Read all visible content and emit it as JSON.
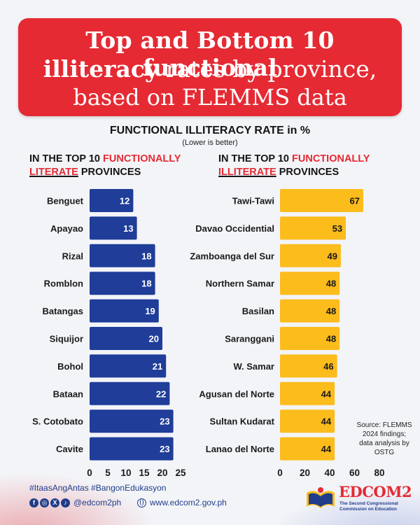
{
  "header": {
    "line1": "Top and Bottom 10 functional",
    "line2_bold": "illiteracy",
    "line2_rest": " rates by province,",
    "line3": "based on FLEMMS data"
  },
  "chart_title": "FUNCTIONAL ILLITERACY RATE in %",
  "chart_subtitle": "(Lower is better)",
  "left_panel": {
    "prefix": "IN THE TOP 10 ",
    "highlight_line1": "FUNCTIONALLY",
    "highlight_line2": "LITERATE",
    "suffix": " PROVINCES"
  },
  "right_panel": {
    "prefix": "IN THE TOP 10 ",
    "highlight_line1": "FUNCTIONALLY",
    "highlight_line2": "ILLITERATE",
    "suffix": " PROVINCES"
  },
  "chart_data": [
    {
      "type": "bar",
      "orientation": "horizontal",
      "categories": [
        "Benguet",
        "Apayao",
        "Rizal",
        "Romblon",
        "Batangas",
        "Siquijor",
        "Bohol",
        "Bataan",
        "S. Cotobato",
        "Cavite"
      ],
      "values": [
        12,
        13,
        18,
        18,
        19,
        20,
        21,
        22,
        23,
        23
      ],
      "xlim": [
        0,
        25
      ],
      "xticks": [
        0,
        5,
        10,
        15,
        20,
        25
      ],
      "color": "#1f3d99",
      "label_color": "#ffffff"
    },
    {
      "type": "bar",
      "orientation": "horizontal",
      "categories": [
        "Tawi-Tawi",
        "Davao Occidential",
        "Zamboanga del Sur",
        "Northern Samar",
        "Basilan",
        "Saranggani",
        "W. Samar",
        "Agusan del Norte",
        "Sultan Kudarat",
        "Lanao del Norte"
      ],
      "values": [
        67,
        53,
        49,
        48,
        48,
        48,
        46,
        44,
        44,
        44
      ],
      "xlim": [
        0,
        80
      ],
      "xticks": [
        0,
        20,
        40,
        60,
        80
      ],
      "color": "#fbbc1c",
      "label_color": "#1a1a1a"
    }
  ],
  "source_note": {
    "line1": "Source: FLEMMS",
    "line2": "2024 findings;",
    "line3": "data analysis by",
    "line4": "OSTG"
  },
  "footer": {
    "hashtags": "#ItaasAngAntas #BangonEdukasyon",
    "handle": "@edcom2ph",
    "website": "www.edcom2.gov.ph",
    "social_icons": [
      "facebook-icon",
      "instagram-icon",
      "x-icon",
      "tiktok-icon"
    ],
    "logo_text": "EDCOM2",
    "logo_tagline": "The Second Congressional Commission on Education"
  },
  "colors": {
    "banner_red": "#e52a33",
    "blue_bar": "#1f3d99",
    "yellow_bar": "#fbbc1c",
    "footer_blue": "#1f3d8a"
  }
}
